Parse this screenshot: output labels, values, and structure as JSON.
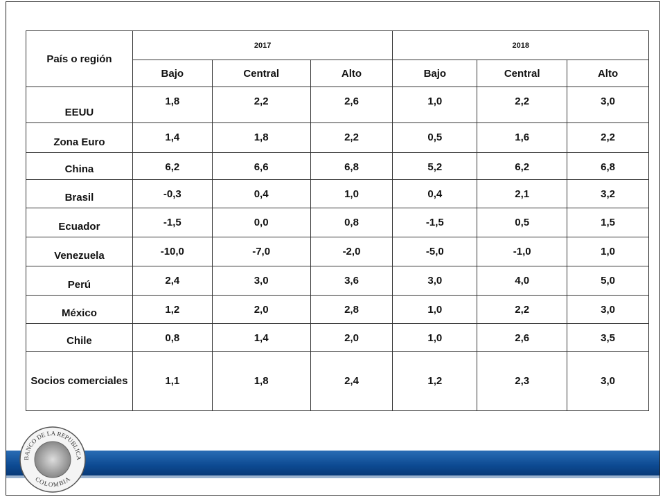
{
  "table": {
    "header": "País o región",
    "years": [
      "2017",
      "2018"
    ],
    "subheaders": [
      "Bajo",
      "Central",
      "Alto",
      "Bajo",
      "Central",
      "Alto"
    ],
    "rows": [
      [
        "EEUU",
        "1,8",
        "2,2",
        "2,6",
        "1,0",
        "2,2",
        "3,0"
      ],
      [
        "Zona Euro",
        "1,4",
        "1,8",
        "2,2",
        "0,5",
        "1,6",
        "2,2"
      ],
      [
        "China",
        "6,2",
        "6,6",
        "6,8",
        "5,2",
        "6,2",
        "6,8"
      ],
      [
        "Brasil",
        "-0,3",
        "0,4",
        "1,0",
        "0,4",
        "2,1",
        "3,2"
      ],
      [
        "Ecuador",
        "-1,5",
        "0,0",
        "0,8",
        "-1,5",
        "0,5",
        "1,5"
      ],
      [
        "Venezuela",
        "-10,0",
        "-7,0",
        "-2,0",
        "-5,0",
        "-1,0",
        "1,0"
      ],
      [
        "Perú",
        "2,4",
        "3,0",
        "3,6",
        "3,0",
        "4,0",
        "5,0"
      ],
      [
        "México",
        "1,2",
        "2,0",
        "2,8",
        "1,0",
        "2,2",
        "3,0"
      ],
      [
        "Chile",
        "0,8",
        "1,4",
        "2,0",
        "1,0",
        "2,6",
        "3,5"
      ],
      [
        "Socios comerciales",
        "1,1",
        "1,8",
        "2,4",
        "1,2",
        "2,3",
        "3,0"
      ]
    ]
  },
  "logo": {
    "top": "BANCO DE LA REPUBLICA",
    "bottom": "COLOMBIA"
  }
}
